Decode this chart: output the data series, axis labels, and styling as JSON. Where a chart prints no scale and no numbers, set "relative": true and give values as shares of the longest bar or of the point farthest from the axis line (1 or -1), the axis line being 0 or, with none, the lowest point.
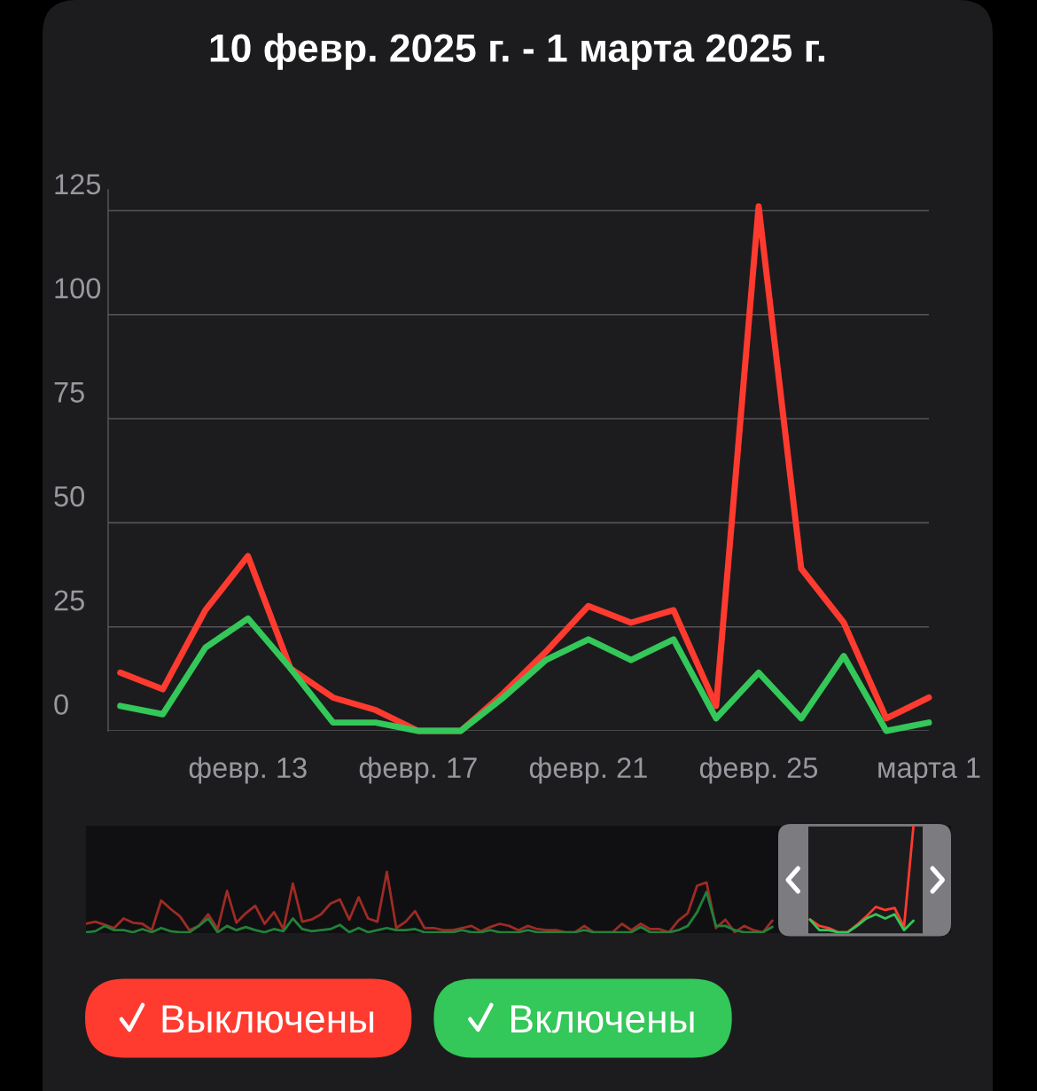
{
  "chart_data": [
    {
      "type": "line",
      "title": "10 февр. 2025 г. - 1 марта 2025 г.",
      "x": [
        "2025-02-10",
        "2025-02-11",
        "2025-02-12",
        "2025-02-13",
        "2025-02-14",
        "2025-02-15",
        "2025-02-16",
        "2025-02-17",
        "2025-02-18",
        "2025-02-19",
        "2025-02-20",
        "2025-02-21",
        "2025-02-22",
        "2025-02-23",
        "2025-02-24",
        "2025-02-25",
        "2025-02-26",
        "2025-02-27",
        "2025-02-28",
        "2025-03-01"
      ],
      "series": [
        {
          "name": "Выключены",
          "color": "#ff3b30",
          "values": [
            14,
            10,
            29,
            42,
            15,
            8,
            5,
            0,
            0,
            9,
            19,
            30,
            26,
            29,
            6,
            126,
            39,
            26,
            3,
            8
          ]
        },
        {
          "name": "Включены",
          "color": "#34c759",
          "values": [
            6,
            4,
            20,
            27,
            15,
            2,
            2,
            0,
            0,
            8,
            17,
            22,
            17,
            22,
            3,
            14,
            3,
            18,
            0,
            2
          ]
        }
      ],
      "xlim": [
        "2025-02-09T17:09",
        "2025-03-01"
      ],
      "xticks": [
        {
          "value": "2025-02-13",
          "label": "февр. 13"
        },
        {
          "value": "2025-02-17",
          "label": "февр. 17"
        },
        {
          "value": "2025-02-21",
          "label": "февр. 21"
        },
        {
          "value": "2025-02-25",
          "label": "февр. 25"
        },
        {
          "value": "2025-03-01",
          "label": "марта 1"
        }
      ],
      "ylim": [
        0,
        130
      ],
      "yticks": [
        0,
        25,
        50,
        75,
        100,
        125
      ],
      "grid": "y",
      "legend": "bottom",
      "line_style": "solid"
    },
    {
      "type": "line",
      "relative": true,
      "categories": [
        null,
        null,
        null,
        null,
        null,
        null,
        null,
        null,
        null,
        null,
        null,
        null,
        null,
        null,
        null,
        null,
        null,
        null,
        null,
        null,
        null,
        null,
        null,
        null,
        null,
        null,
        null,
        null,
        null,
        null,
        null,
        null,
        null,
        null,
        null,
        null,
        null,
        null,
        null,
        null,
        null,
        null,
        null,
        null,
        null,
        null,
        null,
        null,
        null,
        null,
        null,
        null,
        null,
        null,
        null,
        null,
        null,
        null,
        null,
        null,
        null,
        null,
        null,
        null,
        null,
        null,
        null,
        null,
        null,
        null,
        null,
        null,
        null,
        null,
        null,
        null,
        null,
        null,
        null,
        null,
        null,
        null,
        null,
        null,
        null,
        null,
        null,
        null,
        null,
        null,
        null,
        null,
        null
      ],
      "series": [
        {
          "color": "#9e2b25",
          "values": [
            0.08,
            0.1,
            0.07,
            0.04,
            0.13,
            0.09,
            0.08,
            0.02,
            0.3,
            0.22,
            0.15,
            0.02,
            0.06,
            0.17,
            0.03,
            0.39,
            0.09,
            0.18,
            0.25,
            0.08,
            0.19,
            0.03,
            0.46,
            0.1,
            0.12,
            0.17,
            0.27,
            0.31,
            0.12,
            0.33,
            0.13,
            0.1,
            0.57,
            0.04,
            0.1,
            0.2,
            0.04,
            0.04,
            0.02,
            0.02,
            0.04,
            0.06,
            0.01,
            0.05,
            0.08,
            0.06,
            0.02,
            0.06,
            0.03,
            0.02,
            0.02,
            0,
            0,
            0.06,
            0,
            0,
            0,
            0.08,
            0.02,
            0.08,
            0.03,
            0.03,
            0,
            0.11,
            0.18,
            0.44,
            0.47,
            0.04,
            0.12,
            0,
            0.06,
            0.02,
            0,
            0.11,
            null,
            null,
            null,
            null,
            null,
            null,
            null,
            null,
            null,
            null,
            null,
            null,
            null,
            null,
            null,
            null,
            null,
            null,
            null
          ]
        },
        {
          "color": "#23803a",
          "values": [
            0,
            0.01,
            0.06,
            0.02,
            0.02,
            0,
            0.03,
            0,
            0.04,
            0.01,
            0,
            0,
            0.06,
            0.13,
            0,
            0.06,
            0.02,
            0.05,
            0.02,
            0,
            0.03,
            0.01,
            0.13,
            0.03,
            0.01,
            0.02,
            0.03,
            0.07,
            0,
            0.04,
            0,
            0.02,
            0.04,
            0.02,
            0.02,
            0.03,
            0,
            0,
            0,
            0,
            0.02,
            0,
            0,
            0.02,
            0,
            0,
            0,
            0.02,
            0,
            0,
            0,
            0,
            0,
            0.02,
            0,
            0,
            0,
            0,
            0,
            0.05,
            0,
            0,
            0,
            0.02,
            0.06,
            0.19,
            0.38,
            0.06,
            0.06,
            0.02,
            0,
            0,
            0,
            0.05,
            null,
            null,
            null,
            null,
            null,
            null,
            null,
            null,
            null,
            null,
            null,
            null,
            null,
            null,
            null,
            null,
            null,
            null,
            null
          ]
        },
        {
          "color": "#ff3b30",
          "values": [
            null,
            null,
            null,
            null,
            null,
            null,
            null,
            null,
            null,
            null,
            null,
            null,
            null,
            null,
            null,
            null,
            null,
            null,
            null,
            null,
            null,
            null,
            null,
            null,
            null,
            null,
            null,
            null,
            null,
            null,
            null,
            null,
            null,
            null,
            null,
            null,
            null,
            null,
            null,
            null,
            null,
            null,
            null,
            null,
            null,
            null,
            null,
            null,
            null,
            null,
            null,
            null,
            null,
            null,
            null,
            null,
            null,
            null,
            null,
            null,
            null,
            null,
            null,
            null,
            null,
            null,
            null,
            null,
            null,
            null,
            null,
            null,
            null,
            null,
            null,
            null,
            null,
            0.12,
            0.06,
            0.04,
            0,
            0,
            0.07,
            0.15,
            0.24,
            0.21,
            0.23,
            0.05,
            1,
            null,
            null,
            null,
            null
          ]
        },
        {
          "color": "#34c759",
          "values": [
            null,
            null,
            null,
            null,
            null,
            null,
            null,
            null,
            null,
            null,
            null,
            null,
            null,
            null,
            null,
            null,
            null,
            null,
            null,
            null,
            null,
            null,
            null,
            null,
            null,
            null,
            null,
            null,
            null,
            null,
            null,
            null,
            null,
            null,
            null,
            null,
            null,
            null,
            null,
            null,
            null,
            null,
            null,
            null,
            null,
            null,
            null,
            null,
            null,
            null,
            null,
            null,
            null,
            null,
            null,
            null,
            null,
            null,
            null,
            null,
            null,
            null,
            null,
            null,
            null,
            null,
            null,
            null,
            null,
            null,
            null,
            null,
            null,
            null,
            null,
            null,
            null,
            0.12,
            0.02,
            0.02,
            0,
            0,
            0.06,
            0.13,
            0.17,
            0.13,
            0.17,
            0.02,
            0.11,
            null,
            null,
            null,
            null
          ]
        }
      ],
      "line_style": "solid"
    }
  ]
}
